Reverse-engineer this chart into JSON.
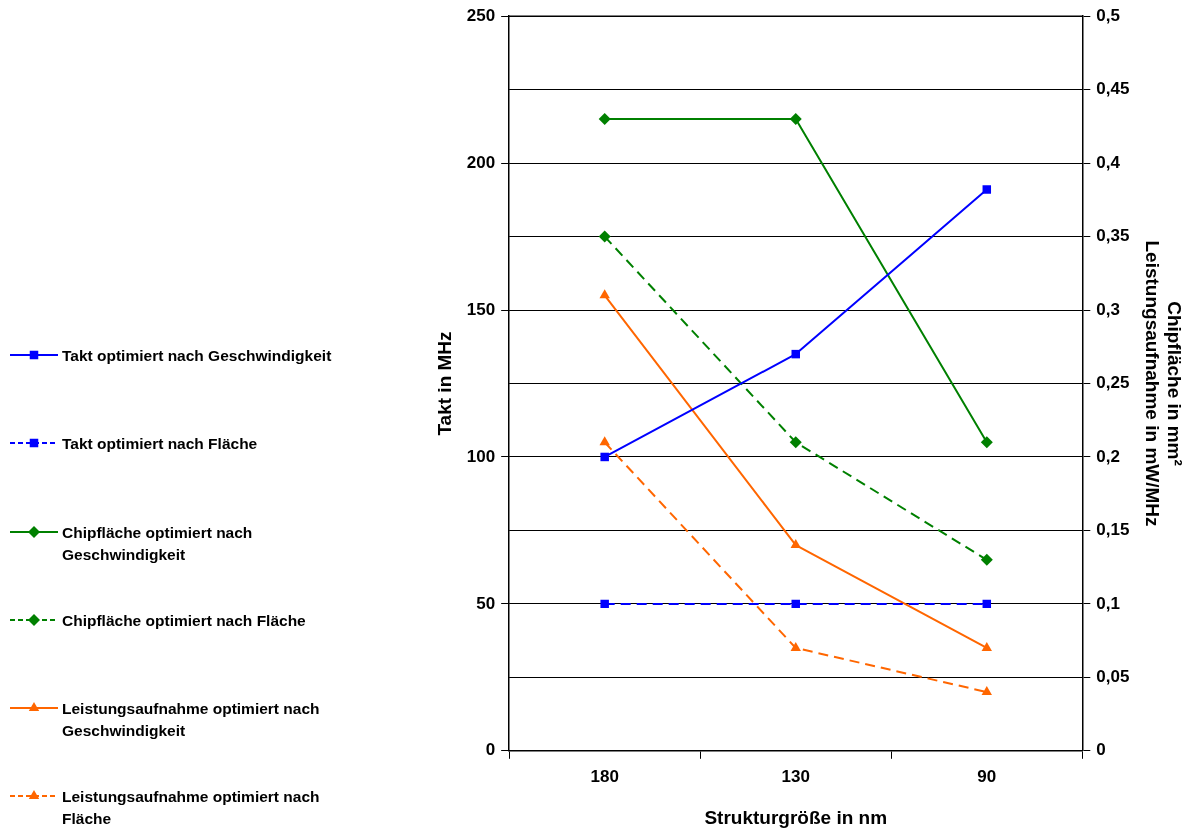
{
  "chart_data": {
    "type": "line",
    "xlabel": "Strukturgröße in nm",
    "ylabel": "Takt in MHz",
    "y2label": "Chipfläche in mm²\nLeistungsaufnahme in mW/MHz",
    "categories": [
      "180",
      "130",
      "90"
    ],
    "series": [
      {
        "name": "Takt optimiert nach Geschwindigkeit",
        "color": "#0000ff",
        "values": [
          100,
          135,
          191
        ],
        "marker": "square",
        "line_style": "solid"
      },
      {
        "name": "Takt optimiert nach Fläche",
        "color": "#0000ff",
        "values": [
          50,
          50,
          50
        ],
        "marker": "square",
        "line_style": "dashed"
      },
      {
        "name": "Chipfläche optimiert nach Geschwindigkeit",
        "color": "#008000",
        "values": [
          0.43,
          0.43,
          0.21
        ],
        "marker": "diamond",
        "line_style": "solid",
        "axis": "y2"
      },
      {
        "name": "Chipfläche optimiert nach Fläche",
        "color": "#008000",
        "values": [
          0.35,
          0.21,
          0.13
        ],
        "marker": "diamond",
        "line_style": "dashed",
        "axis": "y2"
      },
      {
        "name": "Leistungsaufnahme optimiert nach Geschwindigkeit",
        "color": "#ff6600",
        "values": [
          0.31,
          0.14,
          0.07
        ],
        "marker": "triangle",
        "line_style": "solid",
        "axis": "y2"
      },
      {
        "name": "Leistungsaufnahme optimiert nach Fläche",
        "color": "#ff6600",
        "values": [
          0.21,
          0.07,
          0.04
        ],
        "marker": "triangle",
        "line_style": "dashed",
        "axis": "y2"
      }
    ],
    "ylim": [
      0,
      250
    ],
    "yticks": [
      0,
      50,
      100,
      150,
      200,
      250
    ],
    "y2lim": [
      0,
      0.5
    ],
    "y2ticks": [
      {
        "value": 0,
        "label": "0"
      },
      {
        "value": 0.05,
        "label": "0,05"
      },
      {
        "value": 0.1,
        "label": "0,1"
      },
      {
        "value": 0.15,
        "label": "0,15"
      },
      {
        "value": 0.2,
        "label": "0,2"
      },
      {
        "value": 0.25,
        "label": "0,25"
      },
      {
        "value": 0.3,
        "label": "0,3"
      },
      {
        "value": 0.35,
        "label": "0,35"
      },
      {
        "value": 0.4,
        "label": "0,4"
      },
      {
        "value": 0.45,
        "label": "0,45"
      },
      {
        "value": 0.5,
        "label": "0,5"
      }
    ],
    "grid": "y2",
    "legend": "left"
  }
}
